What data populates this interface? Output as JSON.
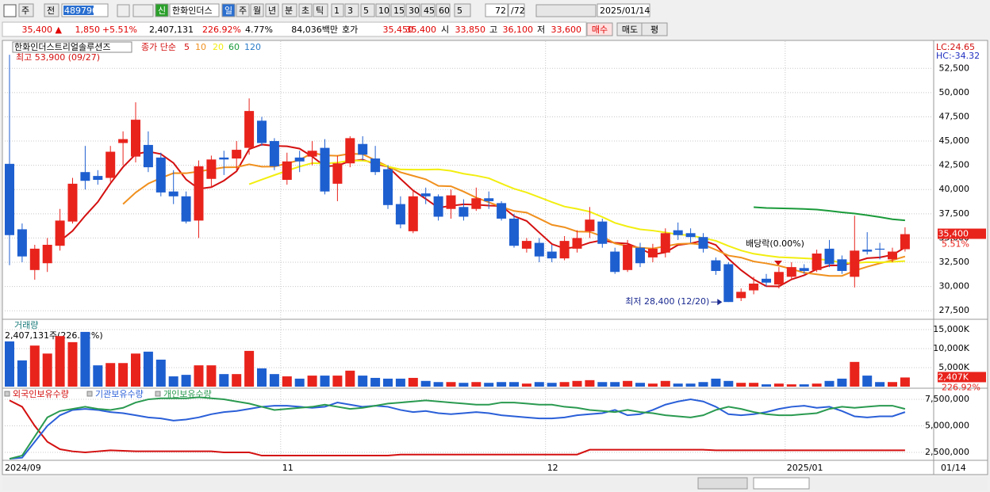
{
  "toolbar": {
    "row1": [
      "주",
      "전",
      "489790",
      "신",
      "한화인더스",
      "일",
      "주",
      "월",
      "년",
      "분",
      "초",
      "틱",
      "1",
      "3",
      "5",
      "10",
      "15",
      "30",
      "45",
      "60",
      "5",
      "72",
      "/72",
      "2025/01/14"
    ],
    "row2": [
      "35,400 ▲",
      "1,850",
      "+5.51%",
      "2,407,131",
      "226.92%",
      "4.77%",
      "84,036백만",
      "호가",
      "35,450",
      "35,400",
      "시",
      "33,850",
      "고",
      "36,100",
      "저",
      "33,600",
      "매수",
      "매도",
      "평"
    ]
  },
  "chart_data": {
    "type": "candlestick",
    "title": "한화인더스트리얼솔루션즈",
    "ma_label": "종가 단순",
    "ma_periods": [
      5,
      10,
      20,
      60,
      120
    ],
    "ma_colors": [
      "#d41010",
      "#f0901e",
      "#f2ee10",
      "#1a9a3a",
      "#2a7cc8"
    ],
    "up_color": "#e8231c",
    "down_color": "#1e5fd0",
    "high_label": "최고 53,900 (09/27)",
    "low_label": "최저 28,400 (12/20)",
    "event_label": "배당락(0.00%)",
    "lc_label": "LC:24.65",
    "hc_label": "HC:-34.32",
    "last_label": "35,400",
    "change_label": "5.51%",
    "xticks": [
      {
        "value": 0,
        "label": "2024/09"
      },
      {
        "value": 22,
        "label": "11"
      },
      {
        "value": 43,
        "label": "12"
      },
      {
        "value": 62,
        "label": "2025/01"
      }
    ],
    "last_date": "01/14",
    "ylim": [
      26700,
      55300
    ],
    "yticks": [
      {
        "value": 27500,
        "label": "27,500"
      },
      {
        "value": 30000,
        "label": "30,000"
      },
      {
        "value": 32500,
        "label": "32,500"
      },
      {
        "value": 35000,
        "label": "35,000"
      },
      {
        "value": 37500,
        "label": "37,500"
      },
      {
        "value": 40000,
        "label": "40,000"
      },
      {
        "value": 42500,
        "label": "42,500"
      },
      {
        "value": 45000,
        "label": "45,000"
      },
      {
        "value": 47500,
        "label": "47,500"
      },
      {
        "value": 50000,
        "label": "50,000"
      },
      {
        "value": 52500,
        "label": "52,500"
      }
    ],
    "open": [
      42650,
      35900,
      31700,
      32400,
      34200,
      36700,
      41800,
      41400,
      41200,
      44800,
      43400,
      44600,
      43300,
      39800,
      39300,
      36800,
      41100,
      43300,
      43200,
      44300,
      47100,
      45000,
      41000,
      43300,
      43400,
      44300,
      40600,
      42700,
      44700,
      43200,
      42100,
      38500,
      35700,
      39600,
      39300,
      38000,
      38200,
      38000,
      39100,
      38600,
      37000,
      33900,
      34500,
      33600,
      32900,
      33900,
      35700,
      36700,
      33600,
      31700,
      34000,
      33000,
      33500,
      35800,
      35500,
      35100,
      32700,
      32300,
      28800,
      29600,
      30800,
      30200,
      31000,
      31900,
      31700,
      33900,
      32800,
      31000,
      33800,
      33900,
      32800,
      33850
    ],
    "high": [
      53900,
      36500,
      34300,
      35000,
      38000,
      41200,
      44500,
      42000,
      44500,
      46000,
      49000,
      46000,
      43800,
      42000,
      39800,
      43000,
      43500,
      44000,
      45000,
      49400,
      47500,
      45300,
      43800,
      44000,
      45000,
      45200,
      43500,
      45500,
      45500,
      44500,
      42500,
      39300,
      40000,
      40200,
      39500,
      40000,
      39000,
      40200,
      39800,
      38800,
      37500,
      35000,
      35000,
      34300,
      35200,
      35800,
      38200,
      37000,
      34000,
      34800,
      34500,
      34400,
      36000,
      36600,
      36000,
      35500,
      33000,
      32500,
      29800,
      31000,
      31300,
      32000,
      32500,
      32300,
      33800,
      34800,
      33200,
      37300,
      35600,
      34500,
      34000,
      36100
    ],
    "low": [
      32200,
      32500,
      30700,
      31500,
      33700,
      36500,
      40000,
      40500,
      40800,
      42500,
      42800,
      41800,
      39300,
      38500,
      36500,
      35000,
      40200,
      41500,
      42000,
      43600,
      44500,
      42000,
      40500,
      41800,
      42500,
      39500,
      38800,
      42300,
      43000,
      41500,
      38000,
      36000,
      35500,
      38500,
      36800,
      37000,
      36800,
      37800,
      38000,
      36800,
      34000,
      33500,
      32500,
      32500,
      32700,
      33500,
      35000,
      34000,
      31300,
      31500,
      32000,
      32500,
      33000,
      34800,
      34500,
      33500,
      31200,
      28400,
      28500,
      29200,
      30000,
      29800,
      30700,
      31300,
      31500,
      32000,
      31300,
      29900,
      33300,
      32800,
      32500,
      33600
    ],
    "close": [
      35300,
      33100,
      33900,
      34300,
      36800,
      40600,
      40900,
      41000,
      43900,
      45200,
      47200,
      42300,
      39700,
      39300,
      36700,
      42400,
      43100,
      43100,
      44100,
      48100,
      44800,
      42400,
      42900,
      42900,
      44000,
      39800,
      42700,
      45300,
      43600,
      41800,
      38400,
      36400,
      39300,
      39300,
      37200,
      39400,
      37200,
      39100,
      38800,
      37000,
      34200,
      34700,
      33100,
      32900,
      34700,
      35000,
      36900,
      34400,
      31500,
      34300,
      32400,
      33900,
      35500,
      35300,
      35100,
      33900,
      31600,
      28400,
      29450,
      30300,
      30400,
      31500,
      32000,
      31600,
      33400,
      32300,
      31600,
      33700,
      33600,
      33800,
      33600,
      35400
    ],
    "volume": {
      "title": "거래량",
      "summary": "2,407,131주(226.92%)",
      "last_label": "2,407K",
      "ratio_label": "226.92%",
      "ylim": [
        0,
        17300
      ],
      "yticks": [
        {
          "value": 5000,
          "label": "5,000K"
        },
        {
          "value": 10000,
          "label": "10,000K"
        },
        {
          "value": 15000,
          "label": "15,000K"
        }
      ],
      "values": [
        11900,
        6900,
        10800,
        8700,
        13300,
        11700,
        14400,
        5600,
        6200,
        6200,
        8700,
        9200,
        7100,
        2700,
        3100,
        5600,
        5600,
        3300,
        3300,
        9400,
        4800,
        3300,
        2700,
        2100,
        2900,
        2900,
        2900,
        4200,
        2900,
        2300,
        2100,
        2100,
        2300,
        1500,
        1200,
        1200,
        1000,
        1200,
        1000,
        1200,
        1200,
        800,
        1200,
        1000,
        1200,
        1500,
        1700,
        1200,
        1200,
        1500,
        1000,
        800,
        1500,
        800,
        800,
        1200,
        2100,
        1500,
        1000,
        1000,
        600,
        800,
        600,
        600,
        800,
        1500,
        2100,
        6500,
        2900,
        1200,
        1200,
        2407
      ]
    },
    "holdings": {
      "ylim": [
        1830000,
        8400000
      ],
      "yticks": [
        {
          "value": 2500000,
          "label": "2,500,000"
        },
        {
          "value": 5000000,
          "label": "5,000,000"
        },
        {
          "value": 7500000,
          "label": "7,500,000"
        }
      ],
      "series": [
        {
          "name": "외국인보유수량",
          "color": "#d41010",
          "values": [
            7400000,
            6800000,
            5000000,
            3500000,
            2800000,
            2600000,
            2500000,
            2600000,
            2700000,
            2650000,
            2600000,
            2600000,
            2600000,
            2600000,
            2600000,
            2600000,
            2600000,
            2500000,
            2500000,
            2500000,
            2200000,
            2200000,
            2200000,
            2200000,
            2200000,
            2200000,
            2200000,
            2200000,
            2200000,
            2200000,
            2200000,
            2300000,
            2300000,
            2300000,
            2300000,
            2300000,
            2300000,
            2300000,
            2300000,
            2300000,
            2300000,
            2300000,
            2300000,
            2300000,
            2300000,
            2300000,
            2750000,
            2750000,
            2750000,
            2750000,
            2750000,
            2750000,
            2750000,
            2750000,
            2750000,
            2750000,
            2700000,
            2700000,
            2700000,
            2700000,
            2700000,
            2700000,
            2700000,
            2700000,
            2700000,
            2700000,
            2700000,
            2700000,
            2700000,
            2700000,
            2700000,
            2700000
          ]
        },
        {
          "name": "기관보유수량",
          "color": "#2a5fd8",
          "values": [
            1900000,
            2000000,
            3500000,
            5000000,
            6000000,
            6500000,
            6600000,
            6500000,
            6300000,
            6200000,
            6000000,
            5800000,
            5700000,
            5500000,
            5600000,
            5800000,
            6100000,
            6300000,
            6400000,
            6600000,
            6800000,
            6900000,
            6900000,
            6800000,
            6700000,
            6800000,
            7200000,
            7000000,
            6800000,
            6900000,
            6800000,
            6500000,
            6300000,
            6400000,
            6200000,
            6100000,
            6200000,
            6300000,
            6200000,
            6000000,
            5900000,
            5800000,
            5700000,
            5700000,
            5800000,
            6000000,
            6100000,
            6200000,
            6500000,
            6000000,
            6100000,
            6500000,
            7000000,
            7300000,
            7500000,
            7300000,
            6800000,
            6100000,
            6000000,
            6100000,
            6300000,
            6600000,
            6800000,
            6900000,
            6700000,
            6800000,
            6400000,
            5900000,
            5800000,
            5900000,
            5900000,
            6300000
          ]
        },
        {
          "name": "개인보유수량",
          "color": "#2a9a50",
          "values": [
            1900000,
            2200000,
            4000000,
            5800000,
            6400000,
            6600000,
            6800000,
            6600000,
            6500000,
            6700000,
            7200000,
            7500000,
            7600000,
            7600000,
            7600000,
            7700000,
            7600000,
            7500000,
            7300000,
            7100000,
            6800000,
            6500000,
            6600000,
            6700000,
            6800000,
            7000000,
            6800000,
            6600000,
            6700000,
            6900000,
            7100000,
            7200000,
            7300000,
            7400000,
            7300000,
            7200000,
            7100000,
            7000000,
            7000000,
            7200000,
            7200000,
            7100000,
            7000000,
            7000000,
            6800000,
            6700000,
            6500000,
            6400000,
            6300000,
            6500000,
            6300000,
            6200000,
            6000000,
            5900000,
            5800000,
            6000000,
            6500000,
            6800000,
            6600000,
            6300000,
            6100000,
            6000000,
            6000000,
            6100000,
            6200000,
            6600000,
            6800000,
            6700000,
            6800000,
            6900000,
            6900000,
            6600000
          ]
        }
      ]
    }
  }
}
